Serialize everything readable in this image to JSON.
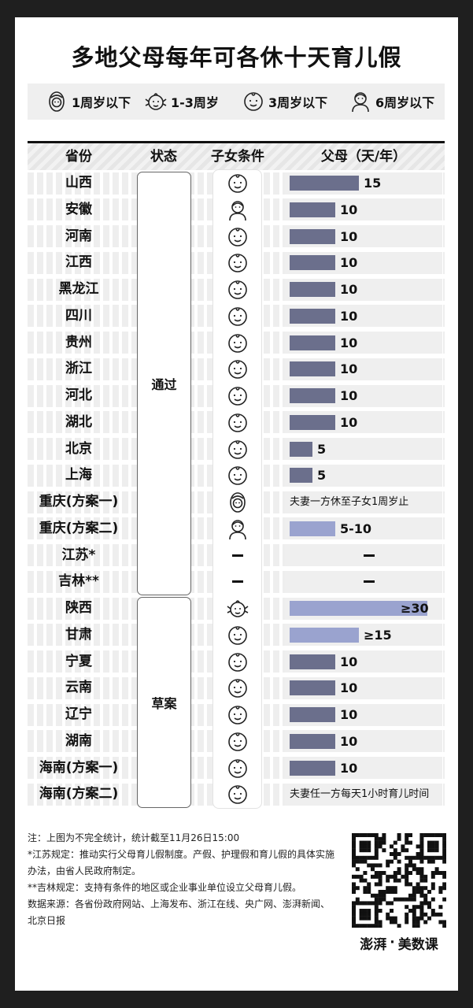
{
  "title": "多地父母每年可各休十天育儿假",
  "legend": [
    {
      "icon": "infant-icon",
      "label": "1周岁以下"
    },
    {
      "icon": "baby-icon",
      "label": "1-3周岁"
    },
    {
      "icon": "toddler-icon",
      "label": "3周岁以下"
    },
    {
      "icon": "child-icon",
      "label": "6周岁以下"
    }
  ],
  "headers": {
    "province": "省份",
    "status": "状态",
    "condition": "子女条件",
    "days": "父母（天/年）"
  },
  "status_groups": [
    {
      "label": "通过",
      "first_row": 0,
      "last_row": 15
    },
    {
      "label": "草案",
      "first_row": 16,
      "last_row": 23
    }
  ],
  "colors": {
    "dark_bar": "#6b6f8c",
    "light_bar": "#9aa3cf"
  },
  "chart_data": {
    "type": "bar",
    "ylabel": "父母（天/年）",
    "xlim": [
      0,
      30
    ],
    "rows": [
      {
        "province": "山西",
        "status": "通过",
        "condition_icon": "toddler-icon",
        "value": 15,
        "label": "15",
        "color": "dark"
      },
      {
        "province": "安徽",
        "status": "通过",
        "condition_icon": "child-icon",
        "value": 10,
        "label": "10",
        "color": "dark"
      },
      {
        "province": "河南",
        "status": "通过",
        "condition_icon": "toddler-icon",
        "value": 10,
        "label": "10",
        "color": "dark"
      },
      {
        "province": "江西",
        "status": "通过",
        "condition_icon": "toddler-icon",
        "value": 10,
        "label": "10",
        "color": "dark"
      },
      {
        "province": "黑龙江",
        "status": "通过",
        "condition_icon": "toddler-icon",
        "value": 10,
        "label": "10",
        "color": "dark"
      },
      {
        "province": "四川",
        "status": "通过",
        "condition_icon": "toddler-icon",
        "value": 10,
        "label": "10",
        "color": "dark"
      },
      {
        "province": "贵州",
        "status": "通过",
        "condition_icon": "toddler-icon",
        "value": 10,
        "label": "10",
        "color": "dark"
      },
      {
        "province": "浙江",
        "status": "通过",
        "condition_icon": "toddler-icon",
        "value": 10,
        "label": "10",
        "color": "dark"
      },
      {
        "province": "河北",
        "status": "通过",
        "condition_icon": "toddler-icon",
        "value": 10,
        "label": "10",
        "color": "dark"
      },
      {
        "province": "湖北",
        "status": "通过",
        "condition_icon": "toddler-icon",
        "value": 10,
        "label": "10",
        "color": "dark"
      },
      {
        "province": "北京",
        "status": "通过",
        "condition_icon": "toddler-icon",
        "value": 5,
        "label": "5",
        "color": "dark"
      },
      {
        "province": "上海",
        "status": "通过",
        "condition_icon": "toddler-icon",
        "value": 5,
        "label": "5",
        "color": "dark"
      },
      {
        "province": "重庆(方案一)",
        "status": "通过",
        "condition_icon": "infant-icon",
        "value": null,
        "note": "夫妻一方休至子女1周岁止"
      },
      {
        "province": "重庆(方案二)",
        "status": "通过",
        "condition_icon": "child-icon",
        "value": 10,
        "label": "5-10",
        "color": "light"
      },
      {
        "province": "江苏*",
        "status": "通过",
        "condition_icon": "none",
        "value": null,
        "dash": true
      },
      {
        "province": "吉林**",
        "status": "通过",
        "condition_icon": "none",
        "value": null,
        "dash": true
      },
      {
        "province": "陕西",
        "status": "草案",
        "condition_icon": "baby-icon",
        "value": 30,
        "label": "≥30",
        "color": "light",
        "label_inside": true
      },
      {
        "province": "甘肃",
        "status": "草案",
        "condition_icon": "toddler-icon",
        "value": 15,
        "label": "≥15",
        "color": "light"
      },
      {
        "province": "宁夏",
        "status": "草案",
        "condition_icon": "toddler-icon",
        "value": 10,
        "label": "10",
        "color": "dark"
      },
      {
        "province": "云南",
        "status": "草案",
        "condition_icon": "toddler-icon",
        "value": 10,
        "label": "10",
        "color": "dark"
      },
      {
        "province": "辽宁",
        "status": "草案",
        "condition_icon": "toddler-icon",
        "value": 10,
        "label": "10",
        "color": "dark"
      },
      {
        "province": "湖南",
        "status": "草案",
        "condition_icon": "toddler-icon",
        "value": 10,
        "label": "10",
        "color": "dark"
      },
      {
        "province": "海南(方案一)",
        "status": "草案",
        "condition_icon": "toddler-icon",
        "value": 10,
        "label": "10",
        "color": "dark"
      },
      {
        "province": "海南(方案二)",
        "status": "草案",
        "condition_icon": "toddler-icon",
        "value": null,
        "note": "夫妻任一方每天1小时育儿时间"
      }
    ]
  },
  "footer": {
    "note": "注：上图为不完全统计，统计截至11月26日15:00",
    "jiangsu": "*江苏规定：推动实行父母育儿假制度。产假、护理假和育儿假的具体实施办法，由省人民政府制定。",
    "jilin": "**吉林规定：支持有条件的地区或企业事业单位设立父母育儿假。",
    "source": "数据来源：各省份政府网站、上海发布、浙江在线、央广网、澎湃新闻、北京日报"
  },
  "logo": {
    "left": "澎湃",
    "separator": "·",
    "right": "美数课"
  }
}
